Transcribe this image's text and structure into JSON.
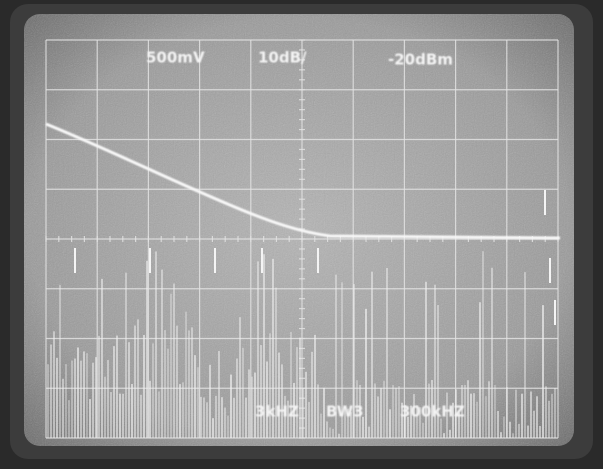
{
  "screen": {
    "labels": {
      "top": [
        "500mV",
        "10dB/",
        "-20dBm"
      ],
      "bottom": [
        "3kHZ",
        "BW3",
        "300kHZ"
      ]
    }
  }
}
